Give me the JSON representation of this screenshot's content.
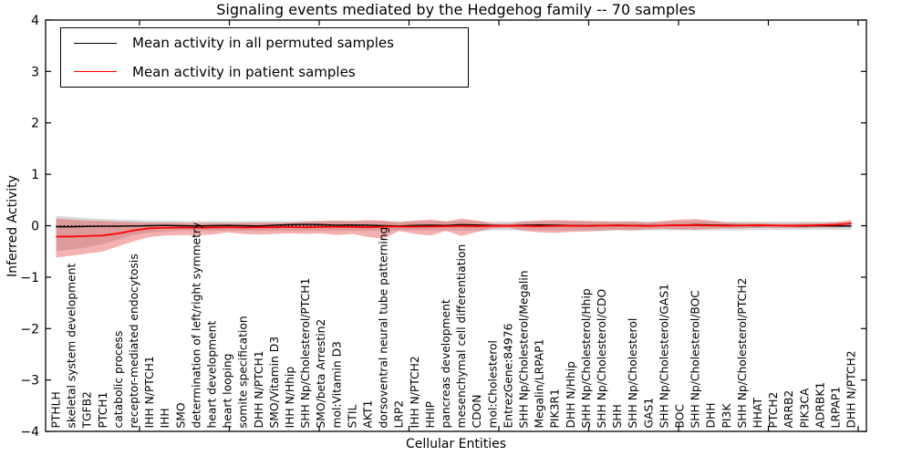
{
  "chart_data": {
    "type": "line",
    "title": "Signaling events mediated by the Hedgehog family -- 70 samples",
    "xlabel": "Cellular Entities",
    "ylabel": "Inferred Activity",
    "ylim": [
      -4,
      4
    ],
    "yticks": [
      4,
      3,
      2,
      1,
      0,
      -1,
      -2,
      -3,
      -4
    ],
    "grid": false,
    "zero_line": "dotted",
    "legend_position": "upper left",
    "legend_items": [
      {
        "label": "Mean activity in all permuted samples",
        "color": "#000000"
      },
      {
        "label": "Mean activity in patient samples",
        "color": "#ff0000"
      }
    ],
    "categories": [
      "PTHLH",
      "skeletal system development",
      "TGFB2",
      "PTCH1",
      "catabolic process",
      "receptor-mediated endocytosis",
      "IHH N/PTCH1",
      "IHH",
      "SMO",
      "determination of left/right symmetry",
      "heart development",
      "heart looping",
      "somite specification",
      "DHH N/PTCH1",
      "SMO/Vitamin D3",
      "IHH N/Hhip",
      "SHH Np/Cholesterol/PTCH1",
      "SMO/beta Arrestin2",
      "mol:Vitamin D3",
      "STIL",
      "AKT1",
      "dorsoventral neural tube patterning",
      "LRP2",
      "IHH N/PTCH2",
      "HHIP",
      "pancreas development",
      "mesenchymal cell differentiation",
      "CDON",
      "mol:Cholesterol",
      "EntrezGene:84976",
      "SHH Np/Cholesterol/Megalin",
      "Megalin/LRPAP1",
      "PIK3R1",
      "DHH N/Hhip",
      "SHH Np/Cholesterol/Hhip",
      "SHH Np/Cholesterol/CDO",
      "SHH",
      "SHH Np/Cholesterol",
      "GAS1",
      "SHH Np/Cholesterol/GAS1",
      "BOC",
      "SHH Np/Cholesterol/BOC",
      "DHH",
      "PI3K",
      "SHH Np/Cholesterol/PTCH2",
      "HHAT",
      "PTCH2",
      "ARRB2",
      "PIK3CA",
      "ADRBK1",
      "LRPAP1",
      "DHH N/PTCH2"
    ],
    "series": [
      {
        "name": "Mean activity in all permuted samples",
        "color": "#000000",
        "values": [
          -0.02,
          -0.02,
          -0.015,
          -0.01,
          -0.01,
          -0.005,
          0,
          0.005,
          0,
          -0.005,
          0,
          0.005,
          0,
          -0.005,
          0.01,
          0.02,
          0.025,
          0.02,
          0.01,
          0.015,
          0.01,
          0,
          -0.005,
          0.005,
          0.01,
          0.005,
          0.02,
          0.015,
          0.005,
          0,
          0.01,
          0.015,
          0.01,
          0.005,
          0,
          0.005,
          0.01,
          0.005,
          0,
          0.005,
          0.01,
          0.02,
          0.015,
          0.01,
          0.005,
          0,
          0.005,
          0,
          -0.005,
          0,
          -0.005,
          -0.005
        ]
      },
      {
        "name": "Mean activity in patient samples",
        "color": "#ff0000",
        "values": [
          -0.21,
          -0.21,
          -0.2,
          -0.19,
          -0.15,
          -0.09,
          -0.05,
          -0.04,
          -0.035,
          -0.04,
          -0.035,
          -0.03,
          -0.035,
          -0.03,
          -0.03,
          -0.025,
          -0.03,
          -0.025,
          -0.02,
          -0.025,
          -0.03,
          -0.02,
          -0.015,
          -0.02,
          -0.015,
          -0.01,
          -0.005,
          -0.01,
          -0.005,
          0,
          -0.005,
          -0.01,
          -0.005,
          0,
          -0.005,
          0,
          0.005,
          0,
          -0.005,
          0.005,
          0.01,
          0.01,
          0.005,
          0,
          0.005,
          0.01,
          0.005,
          0,
          0.005,
          0.01,
          0.02,
          0.045
        ]
      }
    ],
    "bands": [
      {
        "name": "permuted samples spread",
        "color": "#787878",
        "opacity": 0.28,
        "upper": [
          0.19,
          0.17,
          0.15,
          0.13,
          0.12,
          0.11,
          0.1,
          0.1,
          0.09,
          0.09,
          0.09,
          0.09,
          0.09,
          0.09,
          0.09,
          0.09,
          0.09,
          0.09,
          0.09,
          0.09,
          0.09,
          0.09,
          0.09,
          0.09,
          0.09,
          0.09,
          0.09,
          0.09,
          0.08,
          0.08,
          0.09,
          0.09,
          0.09,
          0.09,
          0.09,
          0.09,
          0.09,
          0.09,
          0.08,
          0.08,
          0.09,
          0.09,
          0.09,
          0.08,
          0.08,
          0.08,
          0.08,
          0.08,
          0.08,
          0.08,
          0.07,
          0.07
        ],
        "lower": [
          -0.5,
          -0.46,
          -0.42,
          -0.36,
          -0.27,
          -0.18,
          -0.13,
          -0.11,
          -0.1,
          -0.1,
          -0.1,
          -0.1,
          -0.1,
          -0.1,
          -0.1,
          -0.1,
          -0.1,
          -0.1,
          -0.1,
          -0.1,
          -0.1,
          -0.1,
          -0.09,
          -0.09,
          -0.09,
          -0.09,
          -0.09,
          -0.09,
          -0.09,
          -0.09,
          -0.09,
          -0.09,
          -0.09,
          -0.09,
          -0.09,
          -0.09,
          -0.09,
          -0.09,
          -0.09,
          -0.09,
          -0.09,
          -0.09,
          -0.09,
          -0.09,
          -0.09,
          -0.08,
          -0.08,
          -0.08,
          -0.08,
          -0.08,
          -0.08,
          -0.08
        ]
      },
      {
        "name": "patient samples spread",
        "color": "#e63c3c",
        "opacity": 0.4,
        "upper": [
          0.14,
          0.12,
          0.1,
          0.09,
          0.08,
          0.07,
          0.06,
          0.06,
          0.055,
          0.05,
          0.055,
          0.05,
          0.055,
          0.06,
          0.055,
          0.06,
          0.08,
          0.09,
          0.1,
          0.09,
          0.11,
          0.1,
          0.06,
          0.1,
          0.12,
          0.08,
          0.14,
          0.1,
          0.04,
          0.03,
          0.08,
          0.1,
          0.11,
          0.1,
          0.09,
          0.08,
          0.07,
          0.08,
          0.06,
          0.09,
          0.12,
          0.13,
          0.1,
          0.06,
          0.05,
          0.05,
          0.04,
          0.04,
          0.05,
          0.05,
          0.07,
          0.11
        ],
        "lower": [
          -0.62,
          -0.58,
          -0.54,
          -0.5,
          -0.4,
          -0.3,
          -0.22,
          -0.19,
          -0.18,
          -0.19,
          -0.17,
          -0.13,
          -0.16,
          -0.17,
          -0.16,
          -0.15,
          -0.16,
          -0.15,
          -0.18,
          -0.16,
          -0.22,
          -0.25,
          -0.1,
          -0.16,
          -0.19,
          -0.1,
          -0.2,
          -0.12,
          -0.05,
          -0.04,
          -0.1,
          -0.13,
          -0.14,
          -0.12,
          -0.11,
          -0.1,
          -0.08,
          -0.09,
          -0.07,
          -0.06,
          -0.07,
          -0.08,
          -0.06,
          -0.05,
          -0.05,
          -0.04,
          -0.04,
          -0.04,
          -0.04,
          -0.03,
          -0.03,
          -0.02
        ]
      }
    ]
  }
}
